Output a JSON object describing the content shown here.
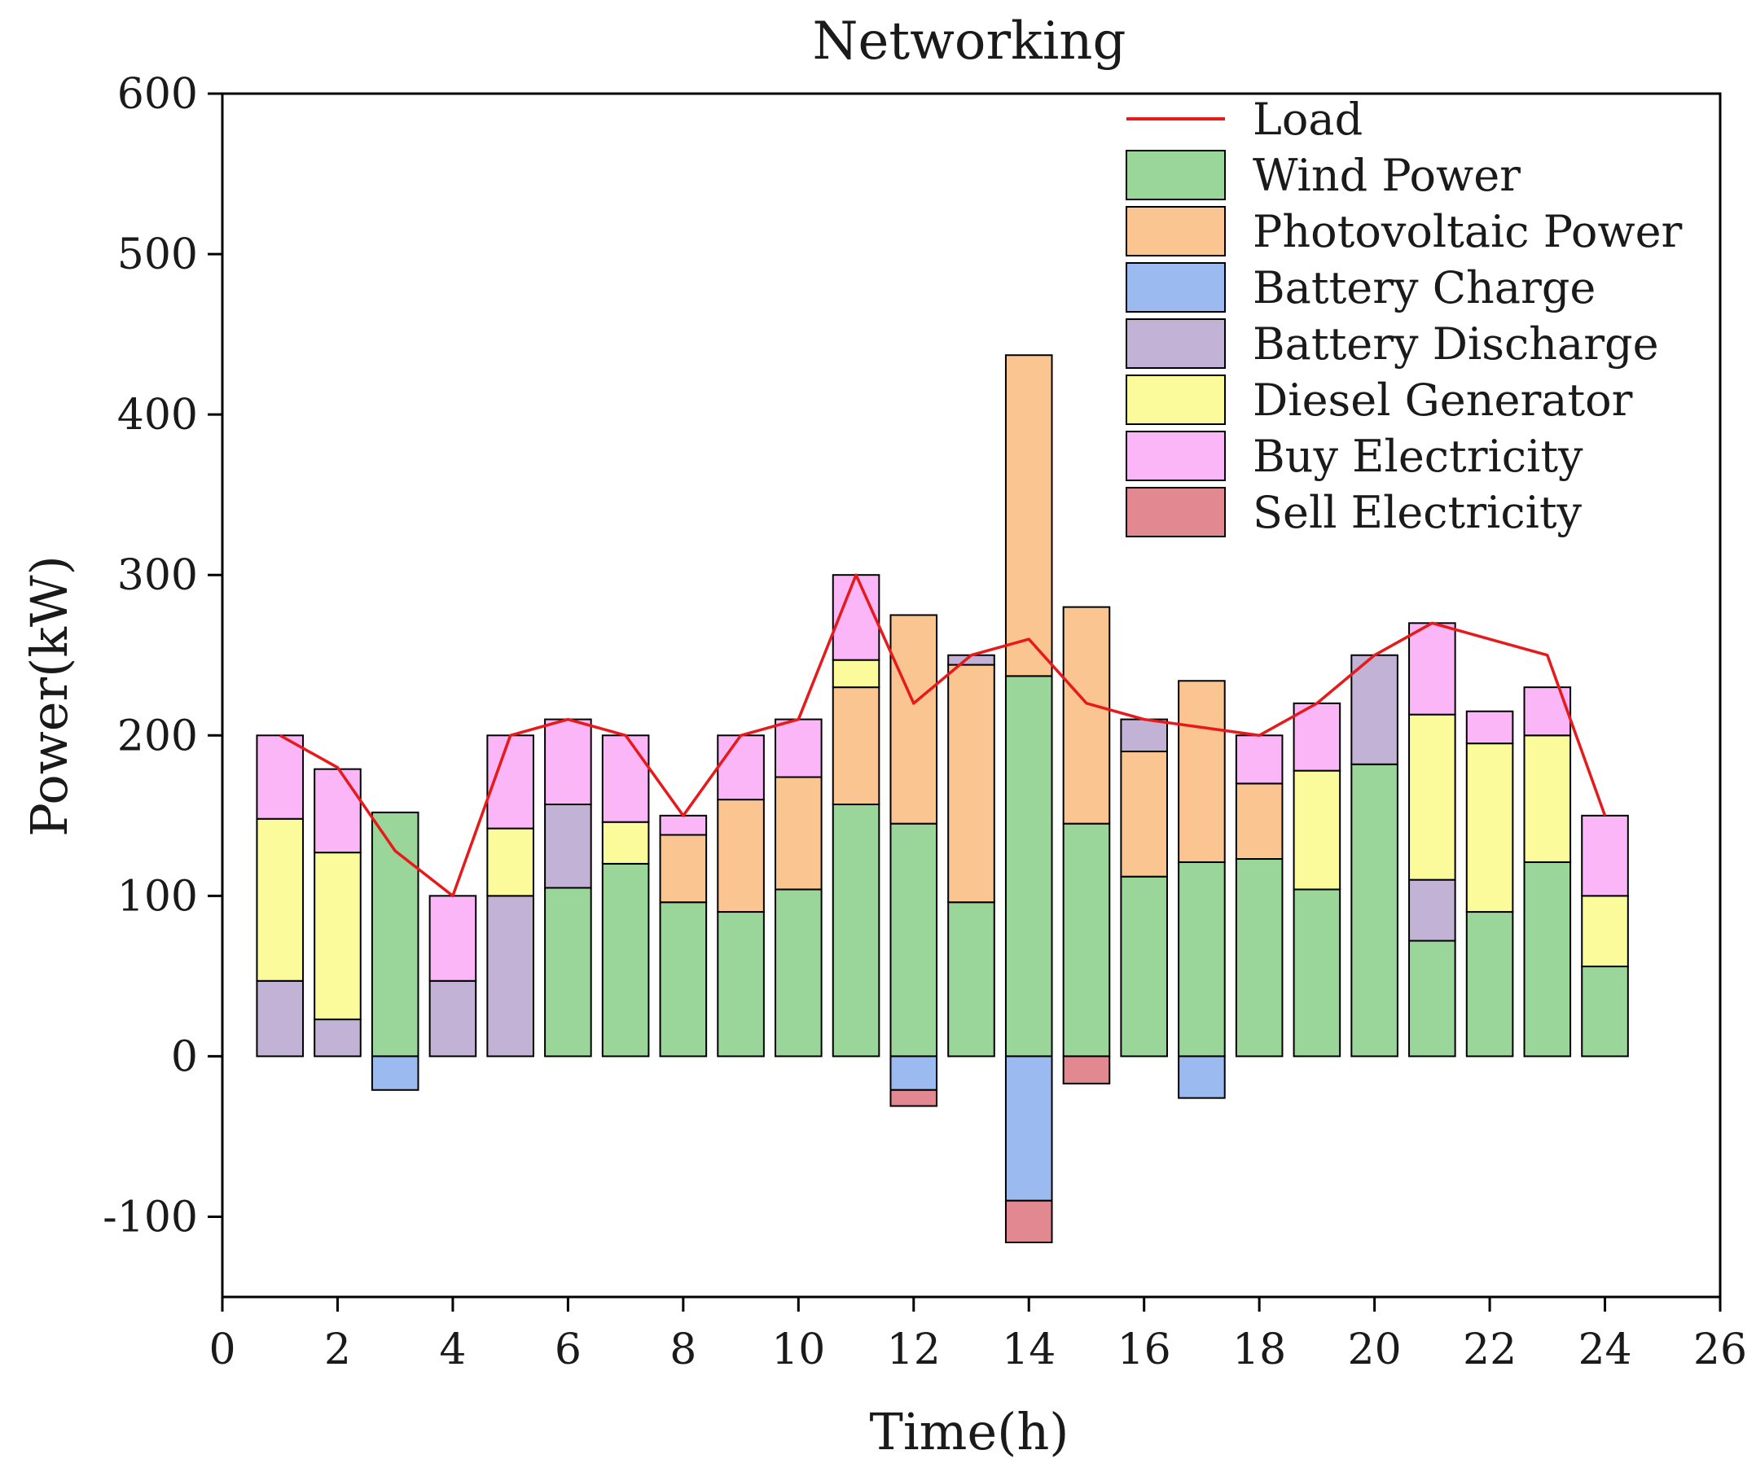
{
  "chart_data": {
    "type": "bar",
    "title": "Networking",
    "xlabel": "Time(h)",
    "ylabel": "Power(kW)",
    "xlim": [
      0,
      26
    ],
    "ylim": [
      -150,
      600
    ],
    "xticks": [
      "0",
      "2",
      "4",
      "6",
      "8",
      "10",
      "12",
      "14",
      "16",
      "18",
      "20",
      "22",
      "24",
      "26"
    ],
    "yticks": [
      "-100",
      "0",
      "100",
      "200",
      "300",
      "400",
      "500",
      "600"
    ],
    "legend_position": "top-right",
    "x": [
      1,
      2,
      3,
      4,
      5,
      6,
      7,
      8,
      9,
      10,
      11,
      12,
      13,
      14,
      15,
      16,
      17,
      18,
      19,
      20,
      21,
      22,
      23,
      24
    ],
    "line": {
      "name": "Load",
      "color": "#e8191a",
      "values": [
        200,
        180,
        128,
        100,
        200,
        210,
        200,
        150,
        200,
        210,
        300,
        220,
        250,
        260,
        220,
        210,
        205,
        200,
        220,
        250,
        270,
        260,
        250,
        150
      ]
    },
    "series": [
      {
        "name": "Wind Power",
        "color": "#9ad69a",
        "values": [
          0,
          0,
          152,
          0,
          0,
          105,
          120,
          96,
          90,
          104,
          157,
          145,
          96,
          237,
          145,
          112,
          121,
          123,
          104,
          182,
          72,
          90,
          121,
          56
        ]
      },
      {
        "name": "Photovoltaic Power",
        "color": "#fbc592",
        "values": [
          0,
          0,
          0,
          0,
          0,
          0,
          0,
          42,
          70,
          70,
          73,
          130,
          148,
          200,
          135,
          78,
          113,
          47,
          0,
          0,
          0,
          0,
          0,
          0
        ]
      },
      {
        "name": "Battery Charge",
        "color": "#9bbaf0",
        "values": [
          0,
          0,
          -21,
          0,
          0,
          0,
          0,
          0,
          0,
          0,
          0,
          -21,
          0,
          -90,
          0,
          0,
          -26,
          0,
          0,
          0,
          0,
          0,
          0,
          0
        ]
      },
      {
        "name": "Battery Discharge",
        "color": "#c2b2d6",
        "values": [
          47,
          23,
          0,
          47,
          100,
          52,
          0,
          0,
          0,
          0,
          0,
          0,
          6,
          0,
          0,
          20,
          0,
          0,
          0,
          68,
          38,
          0,
          0,
          0
        ]
      },
      {
        "name": "Diesel Generator",
        "color": "#fbfb9c",
        "values": [
          101,
          104,
          0,
          0,
          42,
          0,
          26,
          0,
          0,
          0,
          17,
          0,
          0,
          0,
          0,
          0,
          0,
          0,
          74,
          0,
          103,
          105,
          79,
          44
        ]
      },
      {
        "name": "Buy Electricity",
        "color": "#fab6f6",
        "values": [
          52,
          52,
          0,
          53,
          58,
          53,
          54,
          12,
          40,
          36,
          53,
          0,
          0,
          0,
          0,
          0,
          0,
          30,
          42,
          0,
          57,
          20,
          30,
          50
        ]
      },
      {
        "name": "Sell Electricity",
        "color": "#e28891",
        "values": [
          0,
          0,
          0,
          0,
          0,
          0,
          0,
          0,
          0,
          0,
          0,
          -10,
          0,
          -26,
          -17,
          0,
          0,
          0,
          0,
          0,
          0,
          0,
          0,
          0
        ]
      }
    ]
  }
}
